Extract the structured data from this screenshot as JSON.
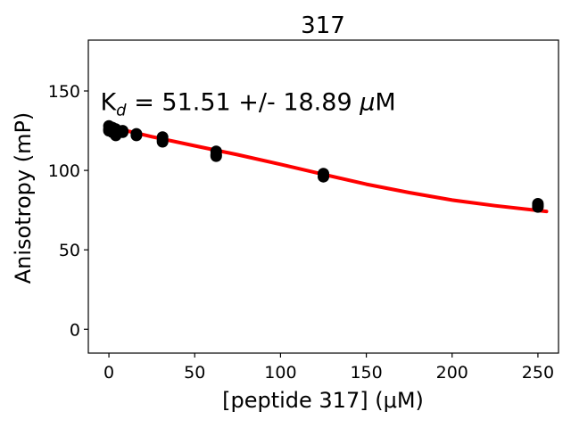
{
  "chart_data": {
    "type": "scatter",
    "title": "317",
    "xlabel": "[peptide 317] (μM)",
    "ylabel": "Anisotropy (mP)",
    "xlim": [
      -12,
      262
    ],
    "ylim": [
      -15,
      182
    ],
    "xticks": [
      0,
      50,
      100,
      150,
      200,
      250
    ],
    "yticks": [
      0,
      50,
      100,
      150
    ],
    "grid": false,
    "annotation": {
      "kd_symbol": "K",
      "kd_subscript": "d",
      "kd_text": " = 51.51 +/- 18.89 ",
      "kd_mu": "μ",
      "kd_unit": "M",
      "x": -5,
      "y": 138
    },
    "series": [
      {
        "kind": "points",
        "color": "#000000",
        "x": [
          0,
          0,
          0,
          2,
          2,
          4,
          4,
          4,
          8,
          8,
          16,
          16,
          31.25,
          31.25,
          31.25,
          62.5,
          62.5,
          62.5,
          125,
          125,
          250,
          250,
          250
        ],
        "y": [
          128,
          126,
          125,
          127,
          124,
          126,
          123,
          122,
          125,
          124,
          123,
          122,
          121,
          119,
          118,
          112,
          110,
          109,
          98,
          96,
          79,
          78,
          77
        ]
      },
      {
        "kind": "fit",
        "color": "#ff0000",
        "x": [
          0,
          25,
          50,
          75,
          100,
          125,
          150,
          175,
          200,
          225,
          255
        ],
        "y": [
          127.5,
          121.2,
          115.5,
          109.9,
          103.8,
          97.5,
          91.3,
          86.0,
          81.3,
          77.8,
          74.2
        ]
      }
    ]
  }
}
